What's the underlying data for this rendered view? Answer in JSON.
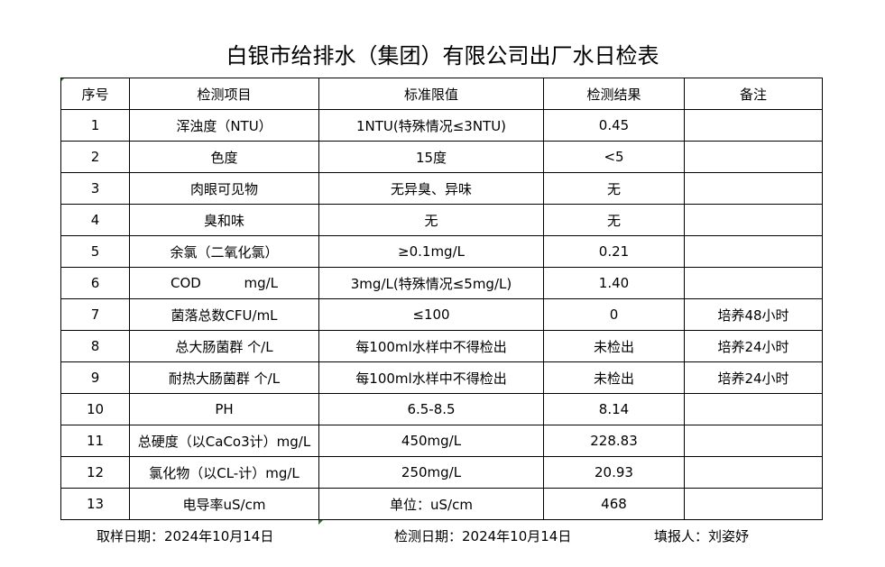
{
  "title": "白银市给排水（集团）有限公司出厂水日检表",
  "headers": [
    "序号",
    "检测项目",
    "标准限值",
    "检测结果",
    "备注"
  ],
  "rows": [
    [
      "1",
      "浑浊度（NTU）",
      "1NTU(特殊情况≤3NTU)",
      "0.45",
      ""
    ],
    [
      "2",
      "色度",
      "15度",
      "<5",
      ""
    ],
    [
      "3",
      "肉眼可见物",
      "无异臭、异味",
      "无",
      ""
    ],
    [
      "4",
      "臭和味",
      "无",
      "无",
      ""
    ],
    [
      "5",
      "余氯（二氧化氯）",
      "≥0.1mg/L",
      "0.21",
      ""
    ],
    [
      "6",
      "COD          mg/L",
      "3mg/L(特殊情况≤5mg/L)",
      "1.40",
      ""
    ],
    [
      "7",
      "菌落总数CFU/mL",
      "≤100",
      "0",
      "培养48小时"
    ],
    [
      "8",
      "总大肠菌群 个/L",
      "每100ml水样中不得检出",
      "未检出",
      "培养24小时"
    ],
    [
      "9",
      "耐热大肠菌群 个/L",
      "每100ml水样中不得检出",
      "未检出",
      "培养24小时"
    ],
    [
      "10",
      "PH",
      "6.5-8.5",
      "8.14",
      ""
    ],
    [
      "11",
      "总硬度（以CaCo3计）mg/L",
      "450mg/L",
      "228.83",
      ""
    ],
    [
      "12",
      "氯化物（以CL-计）mg/L",
      "250mg/L",
      "20.93",
      ""
    ],
    [
      "13",
      "电导率uS/cm",
      "单位：uS/cm",
      "468",
      ""
    ]
  ],
  "footer": {
    "sampling_date": "取样日期：2024年10月14日",
    "test_date": "检测日期：2024年10月14日",
    "reporter": "填报人：刘姿妤"
  }
}
